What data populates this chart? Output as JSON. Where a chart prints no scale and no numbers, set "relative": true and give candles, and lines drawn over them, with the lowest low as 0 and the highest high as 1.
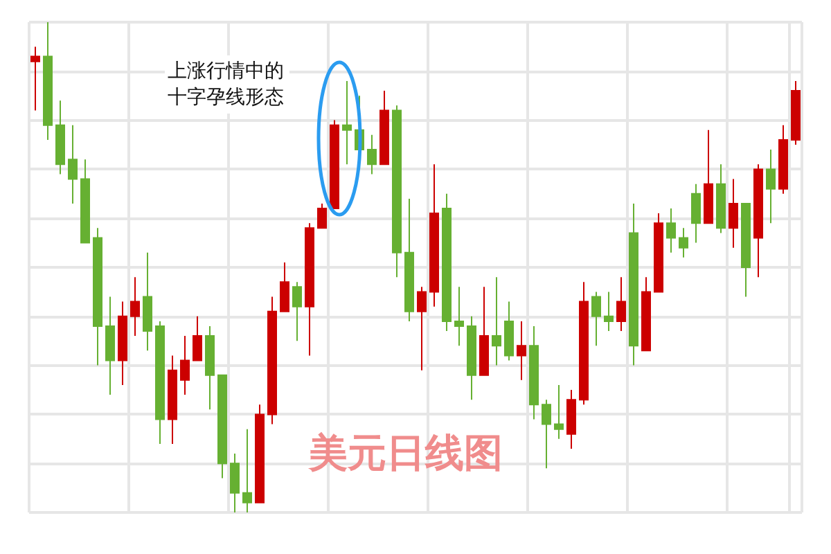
{
  "chart_data": {
    "type": "candlestick",
    "title": "美元日线图",
    "relative": true,
    "grid": true,
    "annotations": [
      "上涨行情中的十字孕线形态"
    ],
    "categories": [
      null,
      null,
      null,
      null,
      null,
      null,
      null,
      null,
      null,
      null,
      null,
      null,
      null,
      null,
      null,
      null,
      null,
      null,
      null,
      null,
      null,
      null,
      null,
      null,
      null,
      null,
      null,
      null,
      null,
      null,
      null,
      null,
      null,
      null,
      null,
      null,
      null,
      null,
      null,
      null,
      null,
      null,
      null,
      null,
      null,
      null,
      null,
      null,
      null,
      null,
      null,
      null,
      null,
      null,
      null,
      null,
      null,
      null,
      null,
      null,
      null,
      null
    ],
    "ohlc": [
      [
        0.92,
        0.95,
        0.82,
        0.93
      ],
      [
        0.93,
        1,
        0.76,
        0.79
      ],
      [
        0.79,
        0.84,
        0.69,
        0.71
      ],
      [
        0.72,
        0.79,
        0.63,
        0.68
      ],
      [
        0.68,
        0.72,
        0.55,
        0.55
      ],
      [
        0.56,
        0.58,
        0.3,
        0.38
      ],
      [
        0.38,
        0.44,
        0.24,
        0.31
      ],
      [
        0.31,
        0.43,
        0.26,
        0.4
      ],
      [
        0.4,
        0.48,
        0.36,
        0.43
      ],
      [
        0.44,
        0.53,
        0.33,
        0.37
      ],
      [
        0.38,
        0.39,
        0.14,
        0.19
      ],
      [
        0.19,
        0.32,
        0.14,
        0.29
      ],
      [
        0.27,
        0.36,
        0.24,
        0.31
      ],
      [
        0.31,
        0.4,
        0.31,
        0.36
      ],
      [
        0.36,
        0.38,
        0.21,
        0.28
      ],
      [
        0.28,
        0.28,
        0.07,
        0.1
      ],
      [
        0.1,
        0.12,
        0,
        0.04
      ],
      [
        0.04,
        0.17,
        0,
        0.02
      ],
      [
        0.02,
        0.22,
        0.02,
        0.2
      ],
      [
        0.2,
        0.44,
        0.18,
        0.41
      ],
      [
        0.41,
        0.51,
        0.41,
        0.47
      ],
      [
        0.46,
        0.47,
        0.35,
        0.42
      ],
      [
        0.42,
        0.59,
        0.32,
        0.58
      ],
      [
        0.58,
        0.63,
        0.58,
        0.62
      ],
      [
        0.62,
        0.8,
        0.62,
        0.79
      ],
      [
        0.79,
        0.88,
        0.71,
        0.78
      ],
      [
        0.78,
        0.85,
        0.74,
        0.74
      ],
      [
        0.74,
        0.77,
        0.69,
        0.71
      ],
      [
        0.71,
        0.86,
        0.71,
        0.82
      ],
      [
        0.82,
        0.83,
        0.48,
        0.53
      ],
      [
        0.53,
        0.64,
        0.39,
        0.41
      ],
      [
        0.41,
        0.46,
        0.29,
        0.45
      ],
      [
        0.45,
        0.71,
        0.42,
        0.61
      ],
      [
        0.62,
        0.65,
        0.37,
        0.39
      ],
      [
        0.39,
        0.46,
        0.34,
        0.38
      ],
      [
        0.38,
        0.4,
        0.23,
        0.28
      ],
      [
        0.28,
        0.46,
        0.28,
        0.36
      ],
      [
        0.36,
        0.48,
        0.3,
        0.34
      ],
      [
        0.39,
        0.43,
        0.31,
        0.32
      ],
      [
        0.32,
        0.39,
        0.27,
        0.34
      ],
      [
        0.34,
        0.38,
        0.19,
        0.22
      ],
      [
        0.22,
        0.23,
        0.09,
        0.18
      ],
      [
        0.18,
        0.26,
        0.15,
        0.17
      ],
      [
        0.16,
        0.25,
        0.13,
        0.23
      ],
      [
        0.23,
        0.47,
        0.22,
        0.43
      ],
      [
        0.44,
        0.45,
        0.34,
        0.4
      ],
      [
        0.4,
        0.45,
        0.37,
        0.39
      ],
      [
        0.39,
        0.48,
        0.37,
        0.43
      ],
      [
        0.57,
        0.63,
        0.3,
        0.34
      ],
      [
        0.33,
        0.48,
        0.33,
        0.45
      ],
      [
        0.45,
        0.61,
        0.45,
        0.59
      ],
      [
        0.59,
        0.62,
        0.53,
        0.56
      ],
      [
        0.56,
        0.58,
        0.52,
        0.54
      ],
      [
        0.65,
        0.67,
        0.55,
        0.59
      ],
      [
        0.59,
        0.78,
        0.59,
        0.67
      ],
      [
        0.67,
        0.71,
        0.57,
        0.58
      ],
      [
        0.58,
        0.68,
        0.54,
        0.63
      ],
      [
        0.63,
        0.63,
        0.44,
        0.5
      ],
      [
        0.56,
        0.71,
        0.48,
        0.7
      ],
      [
        0.7,
        0.74,
        0.59,
        0.66
      ],
      [
        0.66,
        0.79,
        0.65,
        0.76
      ],
      [
        0.76,
        0.88,
        0.75,
        0.86
      ]
    ],
    "colors": [
      "#cc0000",
      "#66b032",
      "#66b032",
      "#66b032",
      "#66b032",
      "#66b032",
      "#66b032",
      "#cc0000",
      "#cc0000",
      "#66b032",
      "#66b032",
      "#cc0000",
      "#cc0000",
      "#cc0000",
      "#66b032",
      "#66b032",
      "#66b032",
      "#66b032",
      "#cc0000",
      "#cc0000",
      "#cc0000",
      "#66b032",
      "#cc0000",
      "#cc0000",
      "#cc0000",
      "#66b032",
      "#66b032",
      "#66b032",
      "#cc0000",
      "#66b032",
      "#66b032",
      "#cc0000",
      "#cc0000",
      "#66b032",
      "#66b032",
      "#66b032",
      "#cc0000",
      "#66b032",
      "#66b032",
      "#cc0000",
      "#66b032",
      "#66b032",
      "#66b032",
      "#cc0000",
      "#cc0000",
      "#66b032",
      "#66b032",
      "#cc0000",
      "#66b032",
      "#cc0000",
      "#cc0000",
      "#66b032",
      "#66b032",
      "#66b032",
      "#cc0000",
      "#66b032",
      "#cc0000",
      "#66b032",
      "#cc0000",
      "#66b032",
      "#cc0000",
      "#cc0000"
    ]
  }
}
